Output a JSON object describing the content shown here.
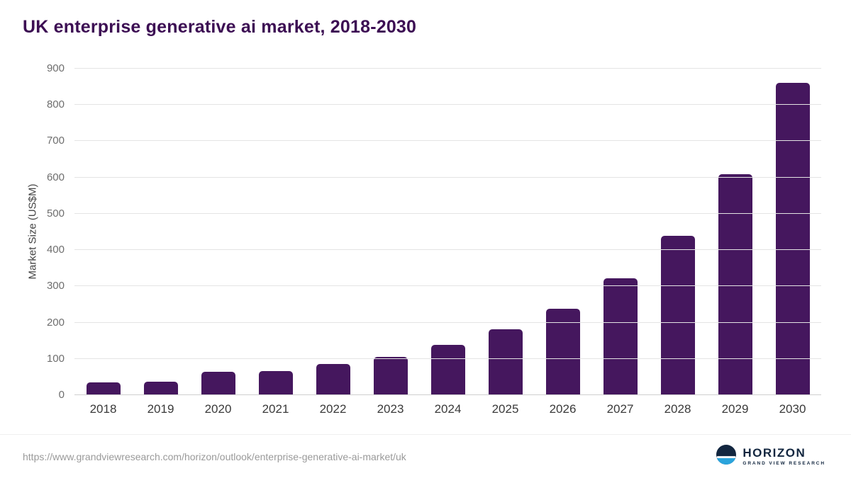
{
  "title": "UK enterprise generative ai market, 2018-2030",
  "chart_data": {
    "type": "bar",
    "title": "UK enterprise generative ai market, 2018-2030",
    "categories": [
      "2018",
      "2019",
      "2020",
      "2021",
      "2022",
      "2023",
      "2024",
      "2025",
      "2026",
      "2027",
      "2028",
      "2029",
      "2030"
    ],
    "values": [
      35,
      37,
      64,
      67,
      85,
      105,
      138,
      181,
      239,
      322,
      439,
      610,
      861
    ],
    "xlabel": "",
    "ylabel": "Market Size (US$M)",
    "ylim": [
      0,
      900
    ],
    "yticks": [
      0,
      100,
      200,
      300,
      400,
      500,
      600,
      700,
      800,
      900
    ],
    "grid": true,
    "legend": false,
    "bar_color": "#45175e"
  },
  "footer": {
    "source_url": "https://www.grandviewresearch.com/horizon/outlook/enterprise-generative-ai-market/uk",
    "logo_text": "HORIZON",
    "logo_subtext": "GRAND VIEW RESEARCH"
  },
  "colors": {
    "title": "#3c0e53",
    "bar": "#45175e",
    "logo_navy": "#12263f",
    "logo_blue": "#2aa4dc"
  }
}
